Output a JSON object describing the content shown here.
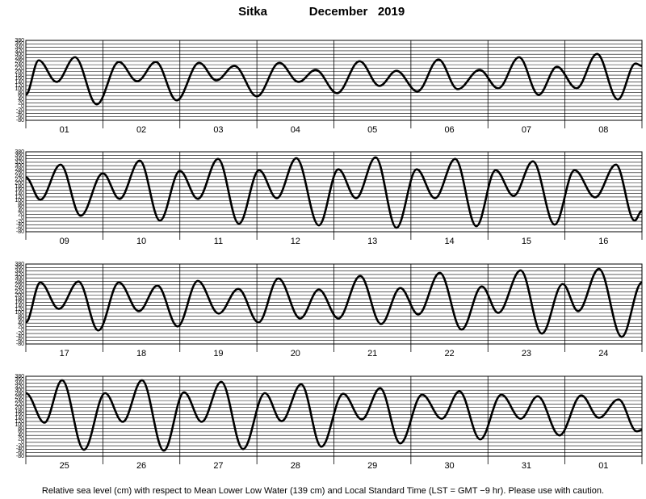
{
  "title": "Sitka",
  "subtitle": "December   2019",
  "note": "Relative sea level (cm) with respect to Mean Lower Low Water (139 cm) and Local Standard Time (LST = GMT −9 hr). Please use with caution.",
  "chart_data": [
    {
      "type": "line",
      "color": "#000000",
      "grid": true,
      "days": [
        "01",
        "02",
        "03",
        "04",
        "05",
        "06",
        "07",
        "08"
      ],
      "xlim": [
        0,
        192
      ],
      "xticks": [
        0,
        24,
        48,
        72,
        96,
        120,
        144,
        168,
        192
      ],
      "ylim": [
        -80,
        380
      ],
      "yticks": [
        -80,
        -60,
        -40,
        -20,
        0,
        20,
        40,
        60,
        80,
        100,
        120,
        140,
        160,
        180,
        200,
        220,
        240,
        260,
        280,
        300,
        320,
        340,
        360,
        380
      ],
      "x": [
        0,
        4,
        9.6,
        15.3,
        22.1,
        29,
        34.7,
        40.5,
        47,
        54,
        59.4,
        65,
        72,
        79,
        85,
        90.3,
        97,
        104,
        110.2,
        115.5,
        122,
        128.6,
        134.6,
        141.4,
        147.2,
        153.7,
        159.8,
        165.5,
        171.6,
        178,
        184.5,
        190,
        192
      ],
      "values": [
        67,
        265,
        141,
        283,
        12,
        256,
        145,
        256,
        35,
        251,
        150,
        233,
        58,
        251,
        141,
        210,
        76,
        260,
        118,
        205,
        86,
        270,
        99,
        210,
        104,
        283,
        67,
        228,
        104,
        302,
        40,
        247,
        233
      ]
    },
    {
      "type": "line",
      "color": "#000000",
      "grid": true,
      "days": [
        "09",
        "10",
        "11",
        "12",
        "13",
        "14",
        "15",
        "16"
      ],
      "xlim": [
        0,
        192
      ],
      "xticks": [
        0,
        24,
        48,
        72,
        96,
        120,
        144,
        168,
        192
      ],
      "ylim": [
        -80,
        380
      ],
      "yticks": [
        -80,
        -60,
        -40,
        -20,
        0,
        20,
        40,
        60,
        80,
        100,
        120,
        140,
        160,
        180,
        200,
        220,
        240,
        260,
        280,
        300,
        320,
        340,
        360,
        380
      ],
      "x": [
        0,
        4.5,
        10.8,
        17.1,
        24,
        29.2,
        35.5,
        41.8,
        48,
        53.6,
        59.9,
        66.4,
        72.7,
        78.2,
        84.3,
        91.3,
        97.4,
        102.9,
        109,
        115.5,
        121.8,
        127.5,
        133.8,
        140.4,
        146.4,
        152,
        158,
        164.8,
        171,
        177.4,
        183.9,
        189.7,
        192
      ],
      "values": [
        233,
        104,
        306,
        12,
        256,
        109,
        329,
        -16,
        270,
        109,
        339,
        -34,
        274,
        113,
        343,
        -43,
        279,
        113,
        348,
        -57,
        279,
        113,
        339,
        -48,
        274,
        127,
        325,
        -39,
        274,
        118,
        306,
        -16,
        40
      ]
    },
    {
      "type": "line",
      "color": "#000000",
      "grid": true,
      "days": [
        "17",
        "18",
        "19",
        "20",
        "21",
        "22",
        "23",
        "24"
      ],
      "xlim": [
        0,
        192
      ],
      "xticks": [
        0,
        24,
        48,
        72,
        96,
        120,
        144,
        168,
        192
      ],
      "ylim": [
        -80,
        380
      ],
      "yticks": [
        -80,
        -60,
        -40,
        -20,
        0,
        20,
        40,
        60,
        80,
        100,
        120,
        140,
        160,
        180,
        200,
        220,
        240,
        260,
        280,
        300,
        320,
        340,
        360,
        380
      ],
      "x": [
        0,
        4.5,
        10.3,
        16.4,
        22.6,
        29,
        35.2,
        41,
        47.3,
        53.6,
        60.1,
        66.2,
        72.5,
        78.7,
        85.5,
        91.3,
        97.4,
        104.2,
        110.7,
        116.7,
        122.3,
        129,
        135.8,
        142.1,
        147.2,
        154.2,
        160.8,
        167.3,
        172.1,
        178.6,
        185.7,
        192
      ],
      "values": [
        44,
        274,
        122,
        279,
        -2,
        274,
        109,
        256,
        21,
        283,
        95,
        237,
        44,
        297,
        67,
        233,
        67,
        311,
        35,
        242,
        90,
        329,
        3,
        251,
        99,
        343,
        -20,
        265,
        109,
        352,
        -39,
        274
      ]
    },
    {
      "type": "line",
      "color": "#000000",
      "grid": true,
      "days": [
        "25",
        "26",
        "27",
        "28",
        "29",
        "30",
        "31",
        "01"
      ],
      "xlim": [
        0,
        192
      ],
      "xticks": [
        0,
        24,
        48,
        72,
        96,
        120,
        144,
        168,
        192
      ],
      "ylim": [
        -80,
        380
      ],
      "yticks": [
        -80,
        -60,
        -40,
        -20,
        0,
        20,
        40,
        60,
        80,
        100,
        120,
        140,
        160,
        180,
        200,
        220,
        240,
        260,
        280,
        300,
        320,
        340,
        360,
        380
      ],
      "x": [
        0,
        5.8,
        11.3,
        18.1,
        24.7,
        30.2,
        36.2,
        43,
        49.3,
        54.8,
        60.9,
        67.7,
        74.5,
        79.7,
        85.8,
        92.1,
        98.9,
        104.7,
        110.4,
        116.7,
        123.5,
        129.6,
        135.1,
        141.6,
        148.2,
        154.2,
        159.5,
        166.3,
        173.1,
        178.6,
        184.7,
        190.4,
        192
      ],
      "values": [
        283,
        113,
        357,
        -43,
        283,
        118,
        357,
        -48,
        288,
        118,
        348,
        -39,
        283,
        122,
        334,
        -25,
        279,
        132,
        311,
        -6,
        274,
        136,
        293,
        17,
        274,
        136,
        265,
        40,
        270,
        141,
        247,
        63,
        72
      ]
    }
  ]
}
